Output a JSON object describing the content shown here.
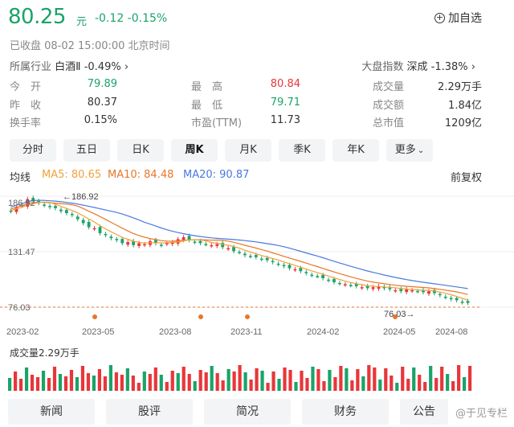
{
  "quote": {
    "price": "80.25",
    "unit": "元",
    "change": "-0.12 -0.15%",
    "add_watch": "加自选",
    "status": "已收盘  08-02 15:00:00  北京时间",
    "industry_label": "所属行业",
    "industry_name": "白酒Ⅱ",
    "industry_change": "-0.49%",
    "market_label": "大盘指数",
    "market_name": "深成",
    "market_change": "-1.38%",
    "colors": {
      "down": "#1aa36a",
      "up": "#e8363a"
    }
  },
  "stats": {
    "col1": [
      {
        "label": "今　开",
        "value": "79.89",
        "color": "#1aa36a"
      },
      {
        "label": "昨　收",
        "value": "80.37",
        "color": "#333333"
      },
      {
        "label": "换手率",
        "value": "0.15%",
        "color": "#333333"
      }
    ],
    "col2": [
      {
        "label": "最　高",
        "value": "80.84",
        "color": "#e8363a"
      },
      {
        "label": "最　低",
        "value": "79.71",
        "color": "#1aa36a"
      },
      {
        "label": "市盈(TTM)",
        "value": "11.73",
        "color": "#333333"
      }
    ],
    "col3": [
      {
        "label": "成交量",
        "value": "2.29万手",
        "color": "#333333"
      },
      {
        "label": "成交额",
        "value": "1.84亿",
        "color": "#333333"
      },
      {
        "label": "总市值",
        "value": "1209亿",
        "color": "#333333"
      }
    ]
  },
  "tabs": [
    "分时",
    "五日",
    "日K",
    "周K",
    "月K",
    "季K",
    "年K",
    "更多"
  ],
  "active_tab": "周K",
  "ma": {
    "label": "均线",
    "ma5": "MA5: 80.65",
    "ma10": "MA10: 84.48",
    "ma20": "MA20: 90.87",
    "colors": {
      "ma5": "#f0a13a",
      "ma10": "#e8762a",
      "ma20": "#4a78e0"
    }
  },
  "adjust": "前复权",
  "chart_data": {
    "type": "candlestick",
    "y_ticks": [
      "186.92",
      "131.47",
      "76.03"
    ],
    "max_label": "186.92",
    "min_label": "76.03",
    "x_ticks": [
      "2023-02",
      "2023-05",
      "2023-08",
      "2023-11",
      "2024-02",
      "2024-05",
      "2024-08"
    ],
    "ylim": [
      76.03,
      186.92
    ],
    "closes": [
      172,
      176,
      178,
      184,
      183,
      180,
      178,
      176,
      175,
      172,
      170,
      168,
      164,
      160,
      156,
      155,
      150,
      148,
      145,
      143,
      140,
      141,
      138,
      140,
      139,
      142,
      140,
      138,
      140,
      141,
      144,
      146,
      143,
      141,
      140,
      139,
      138,
      139,
      136,
      135,
      132,
      131,
      128,
      127,
      126,
      124,
      123,
      121,
      119,
      117,
      115,
      114,
      112,
      110,
      108,
      107,
      105,
      103,
      101,
      100,
      99,
      98,
      97,
      96,
      95,
      96,
      97,
      95,
      94,
      93,
      92,
      94,
      93,
      92,
      91,
      92,
      90,
      88,
      86,
      84,
      83,
      81,
      80.25
    ],
    "volume_label": "成交量",
    "volume_value": "2.29万手"
  },
  "bottom_tabs": [
    "新闻",
    "股评",
    "简况",
    "财务",
    "公告"
  ],
  "watermark": "@于见专栏"
}
